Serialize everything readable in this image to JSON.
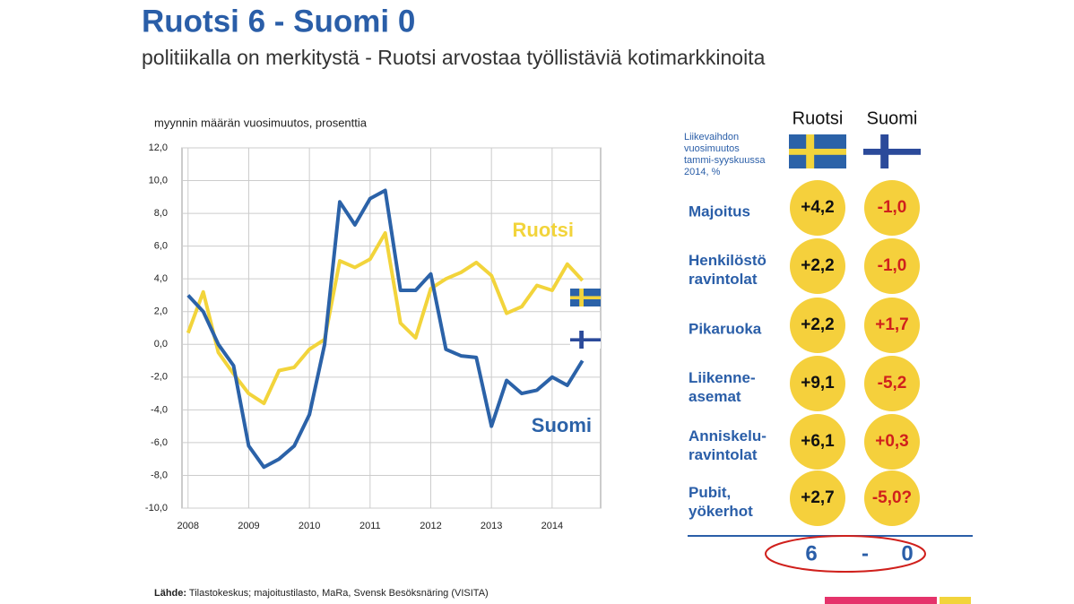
{
  "chart_data": {
    "type": "line",
    "title": "Ruotsi 6 - Suomi 0",
    "subtitle": "politiikalla on merkitystä - Ruotsi arvostaa työllistäviä kotimarkkinoita",
    "y_label": "myynnin määrän vuosimuutos, prosenttia",
    "x": [
      2008,
      2008.25,
      2008.5,
      2008.75,
      2009,
      2009.25,
      2009.5,
      2009.75,
      2010,
      2010.25,
      2010.5,
      2010.75,
      2011,
      2011.25,
      2011.5,
      2011.75,
      2012,
      2012.25,
      2012.5,
      2012.75,
      2013,
      2013.25,
      2013.5,
      2013.75,
      2014,
      2014.25,
      2014.5
    ],
    "series": [
      {
        "name": "Ruotsi",
        "color": "#f2d43b",
        "values": [
          0.7,
          3.2,
          -0.5,
          -1.8,
          -3.0,
          -3.6,
          -1.6,
          -1.4,
          -0.3,
          0.3,
          5.1,
          4.7,
          5.2,
          6.8,
          1.3,
          0.4,
          3.4,
          4.0,
          4.4,
          5.0,
          4.2,
          1.9,
          2.3,
          3.6,
          3.3,
          4.9,
          3.9
        ]
      },
      {
        "name": "Suomi",
        "color": "#2b62a8",
        "values": [
          3.0,
          2.0,
          0.0,
          -1.3,
          -6.2,
          -7.5,
          -7.0,
          -6.2,
          -4.3,
          0.0,
          8.7,
          7.3,
          8.9,
          9.4,
          3.3,
          3.3,
          4.3,
          -0.3,
          -0.7,
          -0.8,
          -5.0,
          -2.2,
          -3.0,
          -2.8,
          -2.0,
          -2.5,
          -1.0
        ]
      }
    ],
    "xlim": [
      2007.9,
      2014.8
    ],
    "xticks": [
      2008,
      2009,
      2010,
      2011,
      2012,
      2013,
      2014
    ],
    "ylim": [
      -10,
      12
    ],
    "yticks": [
      {
        "value": -10,
        "label": "-10,0"
      },
      {
        "value": -8,
        "label": "-8,0"
      },
      {
        "value": -6,
        "label": "-6,0"
      },
      {
        "value": -4,
        "label": "-4,0"
      },
      {
        "value": -2,
        "label": "-2,0"
      },
      {
        "value": 0,
        "label": "0,0"
      },
      {
        "value": 2,
        "label": "2,0"
      },
      {
        "value": 4,
        "label": "4,0"
      },
      {
        "value": 6,
        "label": "6,0"
      },
      {
        "value": 8,
        "label": "8,0"
      },
      {
        "value": 10,
        "label": "10,0"
      },
      {
        "value": 12,
        "label": "12,0"
      }
    ],
    "grid": true
  },
  "scoreboard": {
    "columns": [
      "Ruotsi",
      "Suomi"
    ],
    "note": [
      "Liikevaihdon",
      "vuosimuutos",
      "tammi-syyskuussa",
      "2014, %"
    ],
    "rows": [
      {
        "label": [
          "Majoitus"
        ],
        "values": [
          "+4,2",
          "-1,0"
        ]
      },
      {
        "label": [
          "Henkilöstö",
          "ravintolat"
        ],
        "values": [
          "+2,2",
          "-1,0"
        ]
      },
      {
        "label": [
          "Pikaruoka"
        ],
        "values": [
          "+2,2",
          "+1,7"
        ]
      },
      {
        "label": [
          "Liikenne-",
          "asemat"
        ],
        "values": [
          "+9,1",
          "-5,2"
        ]
      },
      {
        "label": [
          "Anniskelu-",
          "ravintolat"
        ],
        "values": [
          "+6,1",
          "+0,3"
        ]
      },
      {
        "label": [
          "Pubit,",
          "yökerhot"
        ],
        "values": [
          "+2,7",
          "-5,0?"
        ]
      }
    ],
    "score": [
      "6",
      "-",
      "0"
    ]
  },
  "source_label": "Lähde:",
  "source": "Tilastokeskus; majoitustilasto, MaRa, Svensk Besöksnäring (VISITA)"
}
